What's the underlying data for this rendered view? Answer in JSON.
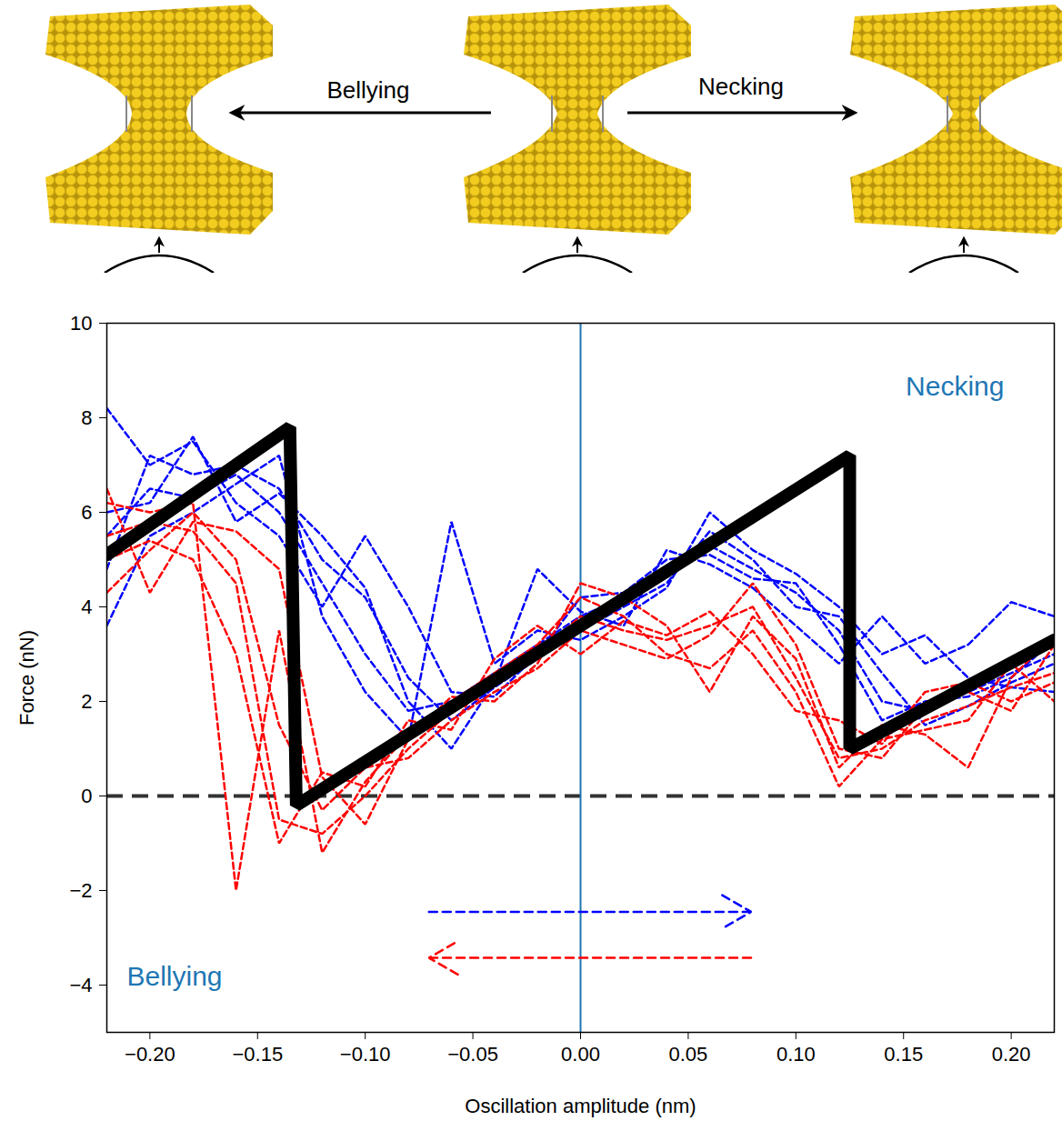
{
  "chart_data": {
    "type": "line",
    "x_label": "Oscillation amplitude (nm)",
    "y_label": "Force (nN)",
    "xlim": [
      -0.22,
      0.22
    ],
    "ylim": [
      -5,
      10
    ],
    "xticks": [
      {
        "value": -0.2,
        "label": "−0.20"
      },
      {
        "value": -0.15,
        "label": "−0.15"
      },
      {
        "value": -0.1,
        "label": "−0.10"
      },
      {
        "value": -0.05,
        "label": "−0.05"
      },
      {
        "value": 0,
        "label": "0.00"
      },
      {
        "value": 0.05,
        "label": "0.05"
      },
      {
        "value": 0.1,
        "label": "0.10"
      },
      {
        "value": 0.15,
        "label": "0.15"
      },
      {
        "value": 0.2,
        "label": "0.20"
      }
    ],
    "yticks": [
      {
        "value": -4,
        "label": "−4"
      },
      {
        "value": -2,
        "label": "−2"
      },
      0,
      2,
      4,
      6,
      8,
      10
    ],
    "hline": 0,
    "vline": 0,
    "annotations": [
      "Necking",
      "Bellying"
    ],
    "annotation_color": "#1f77b4",
    "schematic_labels": [
      "Bellying",
      "Necking"
    ],
    "x": [
      -0.22,
      -0.2,
      -0.18,
      -0.16,
      -0.14,
      -0.12,
      -0.1,
      -0.08,
      -0.06,
      -0.04,
      -0.02,
      0,
      0.02,
      0.04,
      0.06,
      0.08,
      0.1,
      0.12,
      0.14,
      0.16,
      0.18,
      0.2,
      0.22
    ],
    "series": [
      {
        "color": "#0000ff",
        "line_style": "dashed",
        "values": [
          5.5,
          6.5,
          6.3,
          6.8,
          6.0,
          4.5,
          3.0,
          1.8,
          2.0,
          2.6,
          3.2,
          3.8,
          4.2,
          4.8,
          5.3,
          4.8,
          4.3,
          3.5,
          2.0,
          1.8,
          2.2,
          2.6,
          3.0
        ]
      },
      {
        "color": "#0000ff",
        "line_style": "dashed",
        "values": [
          4.8,
          7.2,
          6.8,
          7.0,
          6.5,
          5.0,
          4.2,
          2.5,
          1.6,
          2.3,
          2.9,
          3.5,
          4.0,
          4.5,
          5.6,
          5.0,
          4.0,
          3.8,
          2.6,
          1.5,
          1.9,
          2.4,
          2.8
        ]
      },
      {
        "color": "#0000ff",
        "line_style": "dashed",
        "values": [
          8.2,
          7.0,
          7.5,
          6.2,
          5.5,
          4.0,
          5.5,
          4.0,
          2.2,
          2.1,
          3.0,
          4.2,
          4.3,
          5.0,
          5.1,
          4.6,
          4.5,
          3.2,
          1.6,
          2.0,
          2.1,
          2.5,
          3.3
        ]
      },
      {
        "color": "#0000ff",
        "line_style": "dashed",
        "values": [
          3.6,
          5.5,
          6.0,
          6.6,
          7.2,
          3.8,
          2.2,
          1.2,
          5.8,
          2.8,
          3.5,
          3.3,
          3.8,
          4.4,
          6.0,
          5.2,
          4.7,
          4.0,
          3.0,
          3.4,
          2.5,
          2.3,
          2.2
        ]
      },
      {
        "color": "#0000ff",
        "line_style": "dashed",
        "values": [
          6.0,
          6.2,
          7.6,
          5.8,
          6.4,
          5.5,
          4.4,
          2.0,
          1.0,
          2.4,
          4.8,
          3.9,
          3.6,
          5.2,
          4.9,
          4.4,
          3.6,
          2.8,
          3.8,
          2.8,
          3.2,
          4.1,
          3.8
        ]
      },
      {
        "color": "#ff0000",
        "line_style": "dashed",
        "values": [
          5.5,
          5.8,
          5.6,
          4.5,
          -0.5,
          -0.8,
          0.0,
          1.0,
          1.8,
          2.4,
          3.0,
          3.8,
          3.5,
          3.3,
          3.6,
          4.0,
          2.5,
          0.8,
          1.0,
          1.6,
          1.9,
          2.3,
          2.6
        ]
      },
      {
        "color": "#ff0000",
        "line_style": "dashed",
        "values": [
          6.2,
          6.0,
          6.2,
          -2.0,
          3.5,
          -1.2,
          0.3,
          1.3,
          2.0,
          2.6,
          3.2,
          4.2,
          3.8,
          3.0,
          2.7,
          3.5,
          2.2,
          0.2,
          1.2,
          1.4,
          1.6,
          2.8,
          2.0
        ]
      },
      {
        "color": "#ff0000",
        "line_style": "dashed",
        "values": [
          4.3,
          5.2,
          6.0,
          5.0,
          1.5,
          -0.3,
          0.6,
          0.8,
          1.6,
          2.2,
          2.7,
          3.5,
          3.2,
          2.9,
          3.4,
          4.5,
          3.2,
          1.0,
          0.8,
          1.9,
          2.2,
          1.8,
          3.2
        ]
      },
      {
        "color": "#ff0000",
        "line_style": "dashed",
        "values": [
          6.5,
          4.3,
          5.8,
          5.6,
          4.8,
          0.4,
          -0.6,
          1.2,
          2.1,
          2.0,
          2.8,
          4.5,
          4.2,
          3.6,
          2.2,
          3.8,
          2.9,
          0.6,
          1.5,
          1.3,
          0.6,
          2.5,
          3.4
        ]
      },
      {
        "color": "#ff0000",
        "line_style": "dashed",
        "values": [
          5.0,
          5.4,
          5.0,
          3.0,
          -1.0,
          0.5,
          0.2,
          1.6,
          1.4,
          2.9,
          3.6,
          3.0,
          3.7,
          3.4,
          3.9,
          3.0,
          1.8,
          1.6,
          1.1,
          2.2,
          2.4,
          2.0,
          2.4
        ]
      },
      {
        "color": "#000000",
        "line_style": "solid",
        "x": [
          -0.22,
          -0.135,
          -0.132,
          0.125,
          0.125,
          0.22
        ],
        "values": [
          5.1,
          7.8,
          -0.2,
          7.2,
          1.0,
          3.3
        ]
      }
    ]
  }
}
